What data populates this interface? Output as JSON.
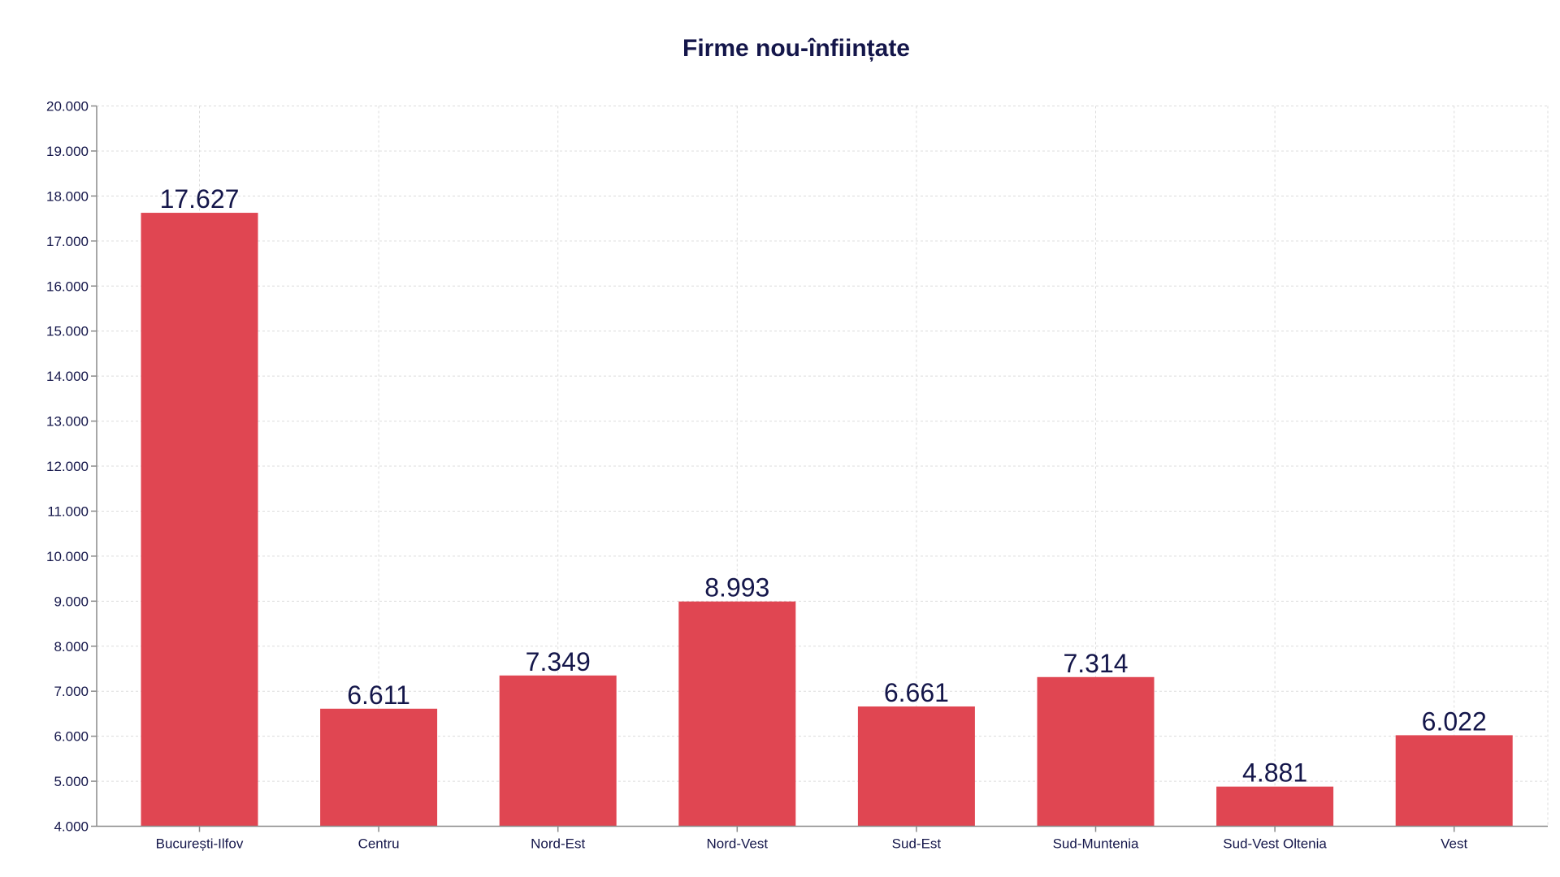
{
  "chart": {
    "title": "Firme nou-înființate"
  },
  "colors": {
    "bar": "#e04652",
    "text": "#14164a",
    "grid": "#dcdcdc",
    "axis": "#8a8a8a",
    "background": "#ffffff"
  },
  "chart_data": {
    "type": "bar",
    "title": "Firme nou-înființate",
    "xlabel": "",
    "ylabel": "",
    "categories": [
      "București-Ilfov",
      "Centru",
      "Nord-Est",
      "Nord-Vest",
      "Sud-Est",
      "Sud-Muntenia",
      "Sud-Vest Oltenia",
      "Vest"
    ],
    "values": [
      17627,
      6611,
      7349,
      8993,
      6661,
      7314,
      4881,
      6022
    ],
    "value_labels": [
      "17.627",
      "6.611",
      "7.349",
      "8.993",
      "6.661",
      "7.314",
      "4.881",
      "6.022"
    ],
    "ylim": [
      4000,
      20000
    ],
    "yticks": [
      4000,
      5000,
      6000,
      7000,
      8000,
      9000,
      10000,
      11000,
      12000,
      13000,
      14000,
      15000,
      16000,
      17000,
      18000,
      19000,
      20000
    ],
    "ytick_labels": [
      "4.000",
      "5.000",
      "6.000",
      "7.000",
      "8.000",
      "9.000",
      "10.000",
      "11.000",
      "12.000",
      "13.000",
      "14.000",
      "15.000",
      "16.000",
      "17.000",
      "18.000",
      "19.000",
      "20.000"
    ],
    "grid": true,
    "legend": null,
    "data_labels": true
  }
}
